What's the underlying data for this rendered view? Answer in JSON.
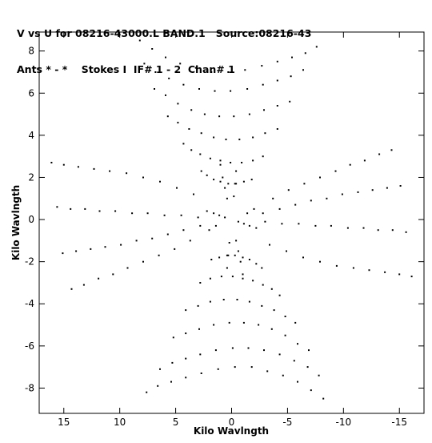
{
  "header": {
    "line1": "V vs U for 08216-43000.L BAND.1   Source:08216-43",
    "line2": "Ants * - *    Stokes I  IF# 1 - 2  Chan# 1"
  },
  "chart_data": {
    "type": "scatter",
    "title": "V vs U for 08216-43000.L BAND.1   Source:08216-43",
    "subtitle": "Ants * - *    Stokes I  IF# 1 - 2  Chan# 1",
    "xlabel": "Kilo Wavlngth",
    "ylabel": "Kilo Wavlngth",
    "xlim": [
      17.2,
      -17.2
    ],
    "ylim": [
      -9.2,
      8.9
    ],
    "x_ticks": [
      15,
      10,
      5,
      0,
      -5,
      -10,
      -15
    ],
    "x_tick_labels": [
      "15",
      "10",
      "5",
      "0",
      "-5",
      "-10",
      "-15"
    ],
    "y_ticks": [
      8,
      6,
      4,
      2,
      0,
      -2,
      -4,
      -6,
      -8
    ],
    "y_tick_labels": [
      "8",
      "6",
      "4",
      "2",
      "0",
      "-2",
      "-4",
      "-6",
      "-8"
    ],
    "marker_color": "#000000",
    "grid": false,
    "legend": "none",
    "series": [
      {
        "values_note": "",
        "points": [
          [
            8.2,
            8.5
          ],
          [
            7.1,
            8.1
          ],
          [
            5.9,
            7.7
          ],
          [
            4.6,
            7.4
          ],
          [
            3.2,
            7.2
          ],
          [
            1.8,
            7.0
          ],
          [
            0.3,
            7.0
          ],
          [
            -1.2,
            7.1
          ],
          [
            -2.7,
            7.3
          ],
          [
            -4.1,
            7.5
          ],
          [
            -5.4,
            7.7
          ],
          [
            -6.6,
            7.9
          ],
          [
            -7.6,
            8.2
          ],
          [
            7.8,
            7.4
          ],
          [
            6.8,
            7.0
          ],
          [
            5.6,
            6.7
          ],
          [
            4.3,
            6.4
          ],
          [
            2.9,
            6.2
          ],
          [
            1.5,
            6.1
          ],
          [
            0.1,
            6.1
          ],
          [
            -1.4,
            6.2
          ],
          [
            -2.8,
            6.4
          ],
          [
            -4.1,
            6.6
          ],
          [
            -5.3,
            6.8
          ],
          [
            -6.4,
            7.1
          ],
          [
            6.9,
            6.2
          ],
          [
            5.9,
            5.9
          ],
          [
            4.8,
            5.5
          ],
          [
            3.6,
            5.2
          ],
          [
            2.4,
            5.0
          ],
          [
            1.1,
            4.9
          ],
          [
            -0.2,
            4.9
          ],
          [
            -1.6,
            5.0
          ],
          [
            -2.9,
            5.2
          ],
          [
            -4.1,
            5.4
          ],
          [
            -5.2,
            5.6
          ],
          [
            5.7,
            4.9
          ],
          [
            4.8,
            4.6
          ],
          [
            3.8,
            4.3
          ],
          [
            2.7,
            4.1
          ],
          [
            1.6,
            3.9
          ],
          [
            0.5,
            3.8
          ],
          [
            -0.7,
            3.8
          ],
          [
            -1.9,
            3.9
          ],
          [
            -3.0,
            4.1
          ],
          [
            -4.1,
            4.3
          ],
          [
            4.3,
            3.6
          ],
          [
            3.6,
            3.3
          ],
          [
            2.8,
            3.1
          ],
          [
            1.9,
            2.9
          ],
          [
            1.0,
            2.8
          ],
          [
            0.1,
            2.7
          ],
          [
            -0.9,
            2.7
          ],
          [
            -1.9,
            2.8
          ],
          [
            -2.8,
            3.0
          ],
          [
            2.7,
            2.3
          ],
          [
            2.2,
            2.1
          ],
          [
            1.6,
            1.9
          ],
          [
            1.0,
            1.8
          ],
          [
            0.3,
            1.7
          ],
          [
            -0.4,
            1.7
          ],
          [
            -1.1,
            1.8
          ],
          [
            -1.8,
            1.9
          ],
          [
            -8.2,
            -8.5
          ],
          [
            -7.1,
            -8.1
          ],
          [
            -5.9,
            -7.7
          ],
          [
            -4.6,
            -7.4
          ],
          [
            -3.2,
            -7.2
          ],
          [
            -1.8,
            -7.0
          ],
          [
            -0.3,
            -7.0
          ],
          [
            1.2,
            -7.1
          ],
          [
            2.7,
            -7.3
          ],
          [
            4.1,
            -7.5
          ],
          [
            5.4,
            -7.7
          ],
          [
            6.6,
            -7.9
          ],
          [
            7.6,
            -8.2
          ],
          [
            -7.8,
            -7.4
          ],
          [
            -6.8,
            -7.0
          ],
          [
            -5.6,
            -6.7
          ],
          [
            -4.3,
            -6.4
          ],
          [
            -2.9,
            -6.2
          ],
          [
            -1.5,
            -6.1
          ],
          [
            -0.1,
            -6.1
          ],
          [
            1.4,
            -6.2
          ],
          [
            2.8,
            -6.4
          ],
          [
            4.1,
            -6.6
          ],
          [
            5.3,
            -6.8
          ],
          [
            6.4,
            -7.1
          ],
          [
            -6.9,
            -6.2
          ],
          [
            -5.9,
            -5.9
          ],
          [
            -4.8,
            -5.5
          ],
          [
            -3.6,
            -5.2
          ],
          [
            -2.4,
            -5.0
          ],
          [
            -1.1,
            -4.9
          ],
          [
            0.2,
            -4.9
          ],
          [
            1.6,
            -5.0
          ],
          [
            2.9,
            -5.2
          ],
          [
            4.1,
            -5.4
          ],
          [
            5.2,
            -5.6
          ],
          [
            -5.7,
            -4.9
          ],
          [
            -4.8,
            -4.6
          ],
          [
            -3.8,
            -4.3
          ],
          [
            -2.7,
            -4.1
          ],
          [
            -1.6,
            -3.9
          ],
          [
            -0.5,
            -3.8
          ],
          [
            0.7,
            -3.8
          ],
          [
            1.9,
            -3.9
          ],
          [
            3.0,
            -4.1
          ],
          [
            4.1,
            -4.3
          ],
          [
            -4.3,
            -3.6
          ],
          [
            -3.6,
            -3.3
          ],
          [
            -2.8,
            -3.1
          ],
          [
            -1.9,
            -2.9
          ],
          [
            -1.0,
            -2.8
          ],
          [
            -0.1,
            -2.7
          ],
          [
            0.9,
            -2.7
          ],
          [
            1.9,
            -2.8
          ],
          [
            2.8,
            -3.0
          ],
          [
            -2.7,
            -2.3
          ],
          [
            -2.2,
            -2.1
          ],
          [
            -1.6,
            -1.9
          ],
          [
            -1.0,
            -1.8
          ],
          [
            -0.3,
            -1.7
          ],
          [
            0.4,
            -1.7
          ],
          [
            1.1,
            -1.8
          ],
          [
            1.8,
            -1.9
          ],
          [
            16.1,
            2.7
          ],
          [
            15.0,
            2.6
          ],
          [
            13.7,
            2.5
          ],
          [
            12.3,
            2.4
          ],
          [
            10.9,
            2.3
          ],
          [
            9.4,
            2.2
          ],
          [
            7.9,
            2.0
          ],
          [
            6.4,
            1.8
          ],
          [
            4.9,
            1.5
          ],
          [
            3.4,
            1.2
          ],
          [
            15.6,
            0.6
          ],
          [
            14.4,
            0.5
          ],
          [
            13.1,
            0.5
          ],
          [
            11.8,
            0.4
          ],
          [
            10.4,
            0.4
          ],
          [
            8.9,
            0.3
          ],
          [
            7.5,
            0.3
          ],
          [
            6.0,
            0.2
          ],
          [
            4.5,
            0.2
          ],
          [
            3.0,
            0.1
          ],
          [
            15.1,
            -1.6
          ],
          [
            13.9,
            -1.5
          ],
          [
            12.6,
            -1.4
          ],
          [
            11.3,
            -1.3
          ],
          [
            9.9,
            -1.2
          ],
          [
            8.5,
            -1.0
          ],
          [
            7.1,
            -0.9
          ],
          [
            5.7,
            -0.7
          ],
          [
            4.3,
            -0.5
          ],
          [
            2.8,
            -0.3
          ],
          [
            14.3,
            -3.3
          ],
          [
            13.2,
            -3.1
          ],
          [
            11.9,
            -2.8
          ],
          [
            10.6,
            -2.6
          ],
          [
            9.3,
            -2.3
          ],
          [
            7.9,
            -2.0
          ],
          [
            6.5,
            -1.7
          ],
          [
            5.1,
            -1.4
          ],
          [
            3.7,
            -1.0
          ],
          [
            -16.1,
            -2.7
          ],
          [
            -15.0,
            -2.6
          ],
          [
            -13.7,
            -2.5
          ],
          [
            -12.3,
            -2.4
          ],
          [
            -10.9,
            -2.3
          ],
          [
            -9.4,
            -2.2
          ],
          [
            -7.9,
            -2.0
          ],
          [
            -6.4,
            -1.8
          ],
          [
            -4.9,
            -1.5
          ],
          [
            -3.4,
            -1.2
          ],
          [
            -15.6,
            -0.6
          ],
          [
            -14.4,
            -0.5
          ],
          [
            -13.1,
            -0.5
          ],
          [
            -11.8,
            -0.4
          ],
          [
            -10.4,
            -0.4
          ],
          [
            -8.9,
            -0.3
          ],
          [
            -7.5,
            -0.3
          ],
          [
            -6.0,
            -0.2
          ],
          [
            -4.5,
            -0.2
          ],
          [
            -3.0,
            -0.1
          ],
          [
            -15.1,
            1.6
          ],
          [
            -13.9,
            1.5
          ],
          [
            -12.6,
            1.4
          ],
          [
            -11.3,
            1.3
          ],
          [
            -9.9,
            1.2
          ],
          [
            -8.5,
            1.0
          ],
          [
            -7.1,
            0.9
          ],
          [
            -5.7,
            0.7
          ],
          [
            -4.3,
            0.5
          ],
          [
            -2.8,
            0.3
          ],
          [
            -14.3,
            3.3
          ],
          [
            -13.2,
            3.1
          ],
          [
            -11.9,
            2.8
          ],
          [
            -10.6,
            2.6
          ],
          [
            -9.3,
            2.3
          ],
          [
            -7.9,
            2.0
          ],
          [
            -6.5,
            1.7
          ],
          [
            -5.1,
            1.4
          ],
          [
            -3.7,
            1.0
          ],
          [
            1.0,
            2.6
          ],
          [
            0.8,
            2.0
          ],
          [
            0.6,
            1.5
          ],
          [
            0.4,
            1.0
          ],
          [
            -0.4,
            2.3
          ],
          [
            -0.3,
            1.7
          ],
          [
            -0.2,
            1.1
          ],
          [
            -1.0,
            -2.6
          ],
          [
            -0.8,
            -2.0
          ],
          [
            -0.6,
            -1.5
          ],
          [
            -0.4,
            -1.0
          ],
          [
            0.4,
            -2.3
          ],
          [
            0.3,
            -1.7
          ],
          [
            0.2,
            -1.1
          ],
          [
            2.2,
            0.4
          ],
          [
            1.6,
            0.3
          ],
          [
            1.1,
            0.2
          ],
          [
            0.6,
            0.1
          ],
          [
            -2.2,
            -0.4
          ],
          [
            -1.6,
            -0.3
          ],
          [
            -1.1,
            -0.2
          ],
          [
            -0.6,
            -0.1
          ],
          [
            2.0,
            -0.5
          ],
          [
            1.4,
            -0.3
          ],
          [
            -2.0,
            0.5
          ],
          [
            -1.4,
            0.3
          ]
        ]
      }
    ]
  }
}
